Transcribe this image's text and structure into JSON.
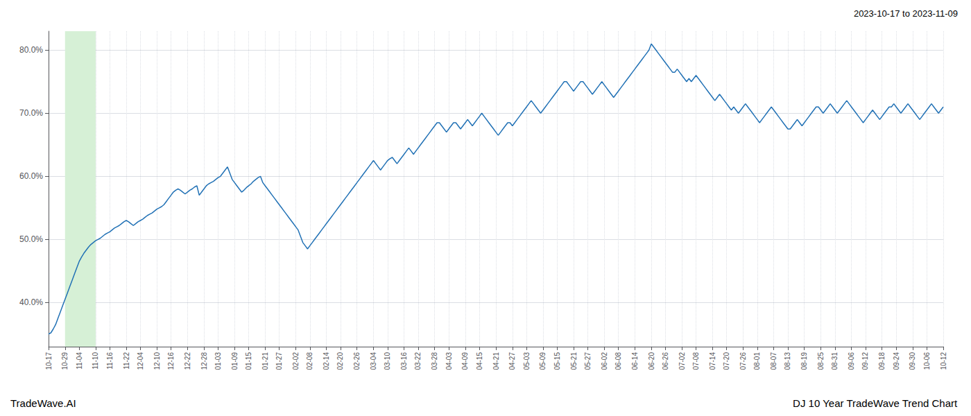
{
  "chart_data": {
    "type": "line",
    "title": "2023-10-17 to 2023-11-09",
    "annotations": [
      "TradeWave.AI",
      "DJ 10 Year TradeWave Trend Chart"
    ],
    "color": "#2171b5",
    "grid": true,
    "shade": {
      "from": "10-29",
      "to": "11-10",
      "color": "#d6f0d6"
    },
    "ylim": [
      33,
      83
    ],
    "yticks": [
      {
        "value": 40,
        "label": "40.0%"
      },
      {
        "value": 50,
        "label": "50.0%"
      },
      {
        "value": 60,
        "label": "60.0%"
      },
      {
        "value": 70,
        "label": "70.0%"
      },
      {
        "value": 80,
        "label": "80.0%"
      }
    ],
    "categories": [
      "10-17",
      null,
      null,
      null,
      null,
      null,
      null,
      "10-29",
      null,
      null,
      null,
      null,
      null,
      "11-04",
      null,
      null,
      null,
      null,
      null,
      null,
      "11-10",
      null,
      null,
      null,
      null,
      null,
      "11-16",
      null,
      null,
      null,
      null,
      null,
      null,
      "11-22",
      null,
      null,
      null,
      null,
      null,
      "12-04",
      null,
      null,
      null,
      null,
      null,
      null,
      "12-10",
      null,
      null,
      null,
      null,
      null,
      "12-16",
      null,
      null,
      null,
      null,
      null,
      null,
      "12-22",
      null,
      null,
      null,
      null,
      null,
      null,
      "12-28",
      null,
      null,
      null,
      null,
      null,
      "01-03",
      null,
      null,
      null,
      null,
      null,
      null,
      "01-09",
      null,
      null,
      null,
      null,
      null,
      "01-15",
      null,
      null,
      null,
      null,
      null,
      null,
      "01-21",
      null,
      null,
      null,
      null,
      null,
      "01-27",
      null,
      null,
      null,
      null,
      null,
      null,
      "02-02",
      null,
      null,
      null,
      null,
      null,
      "02-08",
      null,
      null,
      null,
      null,
      null,
      null,
      "02-14",
      null,
      null,
      null,
      null,
      null,
      "02-20",
      null,
      null,
      null,
      null,
      null,
      null,
      "02-26",
      null,
      null,
      null,
      null,
      null,
      null,
      "03-04",
      null,
      null,
      null,
      null,
      null,
      "03-10",
      null,
      null,
      null,
      null,
      null,
      null,
      "03-16",
      null,
      null,
      null,
      null,
      null,
      "03-22",
      null,
      null,
      null,
      null,
      null,
      null,
      "03-28",
      null,
      null,
      null,
      null,
      null,
      "04-03",
      null,
      null,
      null,
      null,
      null,
      null,
      "04-09",
      null,
      null,
      null,
      null,
      null,
      "04-15",
      null,
      null,
      null,
      null,
      null,
      null,
      "04-21",
      null,
      null,
      null,
      null,
      null,
      null,
      "04-27",
      null,
      null,
      null,
      null,
      null,
      "05-03",
      null,
      null,
      null,
      null,
      null,
      null,
      "05-09",
      null,
      null,
      null,
      null,
      null,
      "05-15",
      null,
      null,
      null,
      null,
      null,
      null,
      "05-21",
      null,
      null,
      null,
      null,
      null,
      "05-27",
      null,
      null,
      null,
      null,
      null,
      null,
      "06-02",
      null,
      null,
      null,
      null,
      null,
      "06-08",
      null,
      null,
      null,
      null,
      null,
      null,
      "06-14",
      null,
      null,
      null,
      null,
      null,
      null,
      "06-20",
      null,
      null,
      null,
      null,
      null,
      "06-26",
      null,
      null,
      null,
      null,
      null,
      null,
      "07-02",
      null,
      null,
      null,
      null,
      null,
      "07-08",
      null,
      null,
      null,
      null,
      null,
      null,
      "07-14",
      null,
      null,
      null,
      null,
      null,
      "07-20",
      null,
      null,
      null,
      null,
      null,
      null,
      "07-26",
      null,
      null,
      null,
      null,
      null,
      "08-01",
      null,
      null,
      null,
      null,
      null,
      null,
      "08-07",
      null,
      null,
      null,
      null,
      null,
      "08-13",
      null,
      null,
      null,
      null,
      null,
      null,
      "08-19",
      null,
      null,
      null,
      null,
      null,
      null,
      "08-25",
      null,
      null,
      null,
      null,
      null,
      "08-31",
      null,
      null,
      null,
      null,
      null,
      null,
      "09-06",
      null,
      null,
      null,
      null,
      null,
      "09-12",
      null,
      null,
      null,
      null,
      null,
      null,
      "09-18",
      null,
      null,
      null,
      null,
      null,
      "09-24",
      null,
      null,
      null,
      null,
      null,
      null,
      "09-30",
      null,
      null,
      null,
      null,
      null,
      "10-06",
      null,
      null,
      null,
      null,
      null,
      null,
      "10-12"
    ],
    "values": [
      35.0,
      35.2,
      35.8,
      36.5,
      37.5,
      38.5,
      39.5,
      40.5,
      41.5,
      42.5,
      43.5,
      44.5,
      45.5,
      46.5,
      47.2,
      47.8,
      48.3,
      48.8,
      49.2,
      49.5,
      49.8,
      50.0,
      50.2,
      50.5,
      50.8,
      51.0,
      51.2,
      51.5,
      51.8,
      52.0,
      52.2,
      52.5,
      52.8,
      53.0,
      52.8,
      52.5,
      52.2,
      52.5,
      52.8,
      53.0,
      53.2,
      53.5,
      53.8,
      54.0,
      54.2,
      54.5,
      54.8,
      55.0,
      55.2,
      55.5,
      56.0,
      56.5,
      57.0,
      57.5,
      57.8,
      58.0,
      57.8,
      57.5,
      57.2,
      57.5,
      57.8,
      58.0,
      58.3,
      58.5,
      57.0,
      57.5,
      58.0,
      58.5,
      58.8,
      59.0,
      59.2,
      59.5,
      59.8,
      60.0,
      60.5,
      61.0,
      61.5,
      60.5,
      59.5,
      59.0,
      58.5,
      58.0,
      57.5,
      57.8,
      58.2,
      58.5,
      58.8,
      59.2,
      59.5,
      59.8,
      60.0,
      59.0,
      58.5,
      58.0,
      57.5,
      57.0,
      56.5,
      56.0,
      55.5,
      55.0,
      54.5,
      54.0,
      53.5,
      53.0,
      52.5,
      52.0,
      51.5,
      50.5,
      49.5,
      49.0,
      48.5,
      49.0,
      49.5,
      50.0,
      50.5,
      51.0,
      51.5,
      52.0,
      52.5,
      53.0,
      53.5,
      54.0,
      54.5,
      55.0,
      55.5,
      56.0,
      56.5,
      57.0,
      57.5,
      58.0,
      58.5,
      59.0,
      59.5,
      60.0,
      60.5,
      61.0,
      61.5,
      62.0,
      62.5,
      62.0,
      61.5,
      61.0,
      61.5,
      62.0,
      62.5,
      62.8,
      63.0,
      62.5,
      62.0,
      62.5,
      63.0,
      63.5,
      64.0,
      64.5,
      64.0,
      63.5,
      64.0,
      64.5,
      65.0,
      65.5,
      66.0,
      66.5,
      67.0,
      67.5,
      68.0,
      68.5,
      68.5,
      68.0,
      67.5,
      67.0,
      67.5,
      68.0,
      68.5,
      68.5,
      68.0,
      67.5,
      68.0,
      68.5,
      69.0,
      68.5,
      68.0,
      68.5,
      69.0,
      69.5,
      70.0,
      69.5,
      69.0,
      68.5,
      68.0,
      67.5,
      67.0,
      66.5,
      67.0,
      67.5,
      68.0,
      68.5,
      68.5,
      68.0,
      68.5,
      69.0,
      69.5,
      70.0,
      70.5,
      71.0,
      71.5,
      72.0,
      71.5,
      71.0,
      70.5,
      70.0,
      70.5,
      71.0,
      71.5,
      72.0,
      72.5,
      73.0,
      73.5,
      74.0,
      74.5,
      75.0,
      75.0,
      74.5,
      74.0,
      73.5,
      74.0,
      74.5,
      75.0,
      75.0,
      74.5,
      74.0,
      73.5,
      73.0,
      73.5,
      74.0,
      74.5,
      75.0,
      74.5,
      74.0,
      73.5,
      73.0,
      72.5,
      73.0,
      73.5,
      74.0,
      74.5,
      75.0,
      75.5,
      76.0,
      76.5,
      77.0,
      77.5,
      78.0,
      78.5,
      79.0,
      79.5,
      80.0,
      81.0,
      80.5,
      80.0,
      79.5,
      79.0,
      78.5,
      78.0,
      77.5,
      77.0,
      76.5,
      76.5,
      77.0,
      76.5,
      76.0,
      75.5,
      75.0,
      75.5,
      75.0,
      75.5,
      76.0,
      75.5,
      75.0,
      74.5,
      74.0,
      73.5,
      73.0,
      72.5,
      72.0,
      72.5,
      73.0,
      72.5,
      72.0,
      71.5,
      71.0,
      70.5,
      71.0,
      70.5,
      70.0,
      70.5,
      71.0,
      71.5,
      71.0,
      70.5,
      70.0,
      69.5,
      69.0,
      68.5,
      69.0,
      69.5,
      70.0,
      70.5,
      71.0,
      70.5,
      70.0,
      69.5,
      69.0,
      68.5,
      68.0,
      67.5,
      67.5,
      68.0,
      68.5,
      69.0,
      68.5,
      68.0,
      68.5,
      69.0,
      69.5,
      70.0,
      70.5,
      71.0,
      71.0,
      70.5,
      70.0,
      70.5,
      71.0,
      71.5,
      71.0,
      70.5,
      70.0,
      70.5,
      71.0,
      71.5,
      72.0,
      71.5,
      71.0,
      70.5,
      70.0,
      69.5,
      69.0,
      68.5,
      69.0,
      69.5,
      70.0,
      70.5,
      70.0,
      69.5,
      69.0,
      69.5,
      70.0,
      70.5,
      71.0,
      71.0,
      71.5,
      71.0,
      70.5,
      70.0,
      70.5,
      71.0,
      71.5,
      71.0,
      70.5,
      70.0,
      69.5,
      69.0,
      69.5,
      70.0,
      70.5,
      71.0,
      71.5,
      71.0,
      70.5,
      70.0,
      70.5,
      71.0
    ]
  }
}
